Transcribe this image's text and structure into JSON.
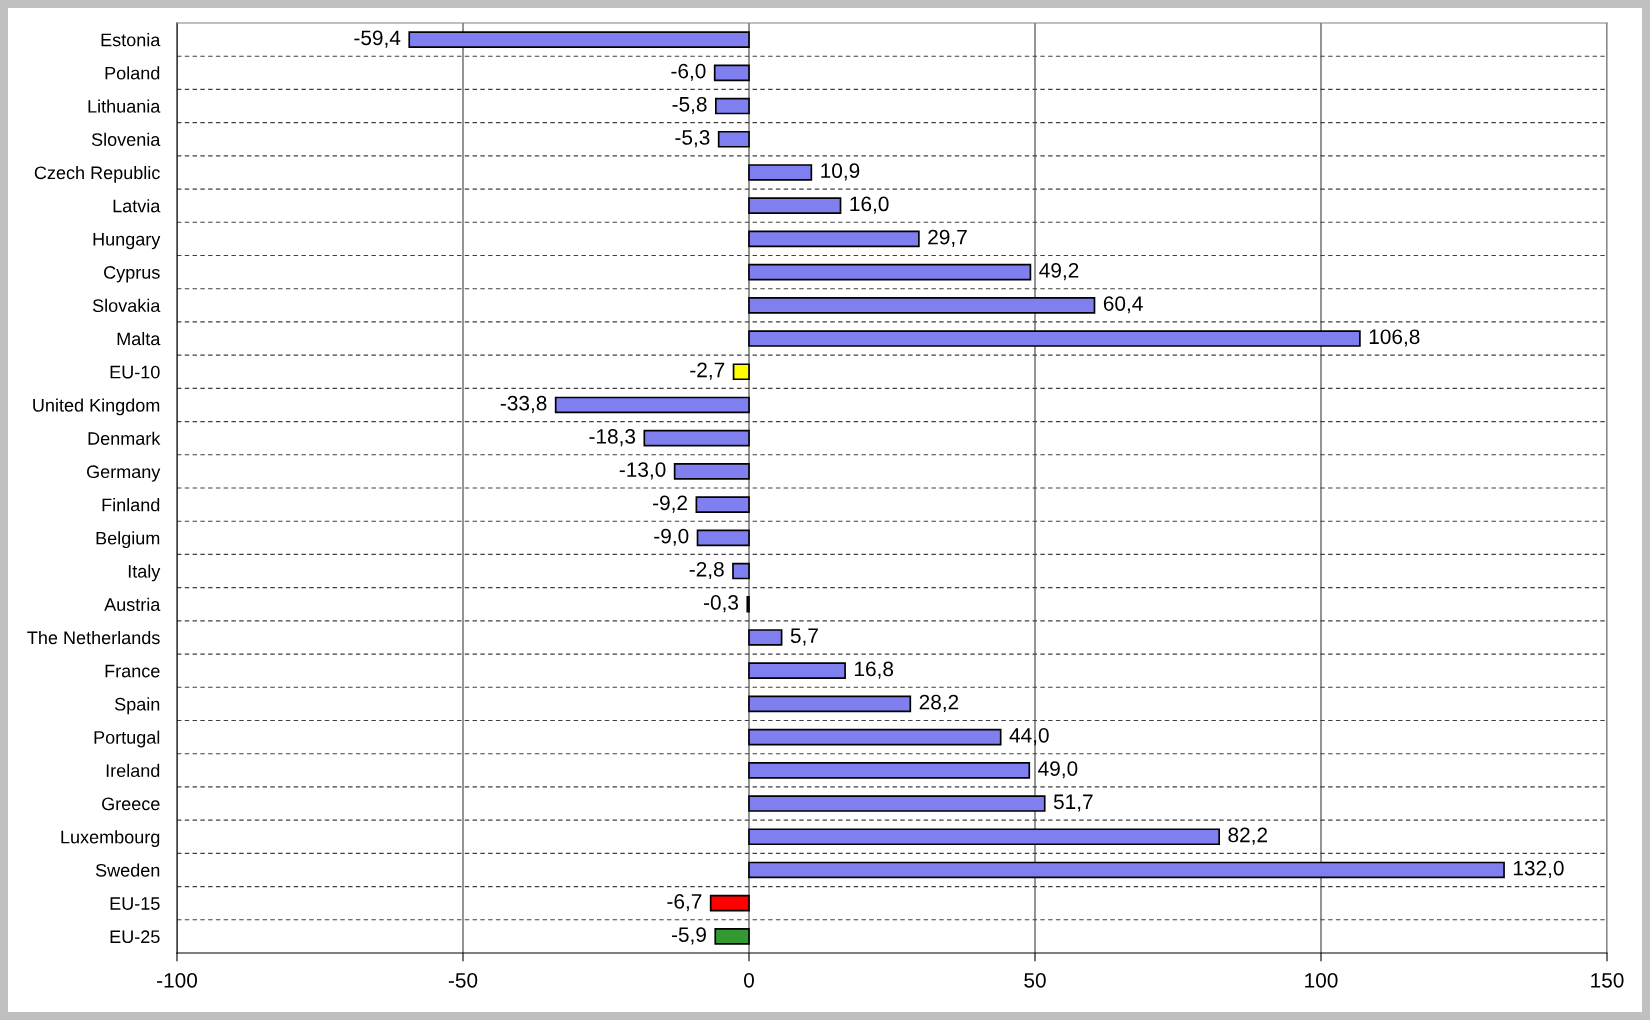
{
  "chart_data": {
    "type": "bar",
    "orientation": "horizontal",
    "categories": [
      "Estonia",
      "Poland",
      "Lithuania",
      "Slovenia",
      "Czech Republic",
      "Latvia",
      "Hungary",
      "Cyprus",
      "Slovakia",
      "Malta",
      "EU-10",
      "United Kingdom",
      "Denmark",
      "Germany",
      "Finland",
      "Belgium",
      "Italy",
      "Austria",
      "The Netherlands",
      "France",
      "Spain",
      "Portugal",
      "Ireland",
      "Greece",
      "Luxembourg",
      "Sweden",
      "EU-15",
      "EU-25"
    ],
    "values": [
      -59.4,
      -6.0,
      -5.8,
      -5.3,
      10.9,
      16.0,
      29.7,
      49.2,
      60.4,
      106.8,
      -2.7,
      -33.8,
      -18.3,
      -13.0,
      -9.2,
      -9.0,
      -2.8,
      -0.3,
      5.7,
      16.8,
      28.2,
      44.0,
      49.0,
      51.7,
      82.2,
      132.0,
      -6.7,
      -5.9
    ],
    "value_labels": [
      "-59,4",
      "-6,0",
      "-5,8",
      "-5,3",
      "10,9",
      "16,0",
      "29,7",
      "49,2",
      "60,4",
      "106,8",
      "-2,7",
      "-33,8",
      "-18,3",
      "-13,0",
      "-9,2",
      "-9,0",
      "-2,8",
      "-0,3",
      "5,7",
      "16,8",
      "28,2",
      "44,0",
      "49,0",
      "51,7",
      "82,2",
      "132,0",
      "-6,7",
      "-5,9"
    ],
    "colors": [
      "#7f7fef",
      "#7f7fef",
      "#7f7fef",
      "#7f7fef",
      "#7f7fef",
      "#7f7fef",
      "#7f7fef",
      "#7f7fef",
      "#7f7fef",
      "#7f7fef",
      "#ffff00",
      "#7f7fef",
      "#7f7fef",
      "#7f7fef",
      "#7f7fef",
      "#7f7fef",
      "#7f7fef",
      "#7f7fef",
      "#7f7fef",
      "#7f7fef",
      "#7f7fef",
      "#7f7fef",
      "#7f7fef",
      "#7f7fef",
      "#7f7fef",
      "#7f7fef",
      "#ff0000",
      "#339933"
    ],
    "xlim": [
      -100,
      150
    ],
    "xticks": [
      -100,
      -50,
      0,
      50,
      100,
      150
    ],
    "grid": "x",
    "legend": false
  }
}
